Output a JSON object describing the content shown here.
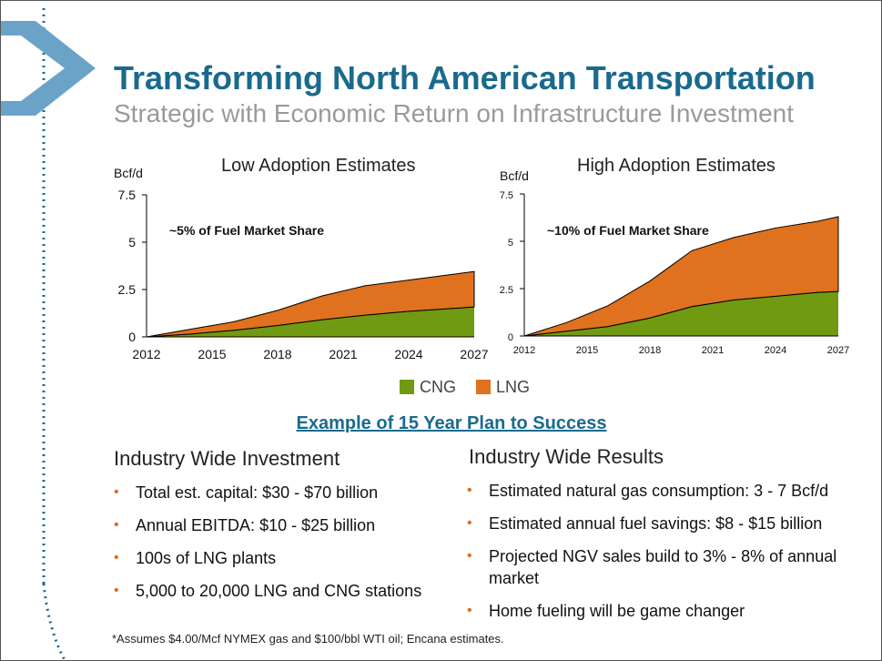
{
  "title": "Transforming North American Transportation",
  "subtitle": "Strategic with Economic Return on Infrastructure Investment",
  "colors": {
    "brand_blue": "#1a6a8e",
    "cng": "#6f9a12",
    "lng": "#e0711f",
    "bullet": "#e06a20"
  },
  "chart_data": [
    {
      "type": "area",
      "title": "Low Adoption Estimates",
      "ylabel": "Bcf/d",
      "annotation": "~5% of Fuel Market Share",
      "x": [
        2012,
        2014,
        2016,
        2018,
        2020,
        2022,
        2024,
        2026,
        2027
      ],
      "x_ticks": [
        "2012",
        "2015",
        "2018",
        "2021",
        "2024",
        "2027"
      ],
      "y_ticks": [
        "0",
        "2.5",
        "5",
        "7.5"
      ],
      "ylim": [
        0,
        7.5
      ],
      "stacked": true,
      "series": [
        {
          "name": "CNG",
          "values": [
            0,
            0.15,
            0.35,
            0.6,
            0.9,
            1.15,
            1.35,
            1.5,
            1.58
          ]
        },
        {
          "name": "LNG",
          "values": [
            0,
            0.25,
            0.45,
            0.8,
            1.25,
            1.55,
            1.65,
            1.8,
            1.87
          ]
        }
      ]
    },
    {
      "type": "area",
      "title": "High Adoption Estimates",
      "ylabel": "Bcf/d",
      "annotation": "~10% of Fuel Market Share",
      "x": [
        2012,
        2014,
        2016,
        2018,
        2019,
        2020,
        2022,
        2024,
        2026,
        2027
      ],
      "x_ticks": [
        "2012",
        "2015",
        "2018",
        "2021",
        "2024",
        "2027"
      ],
      "y_ticks": [
        "0",
        "2.5",
        "5",
        "7.5"
      ],
      "ylim": [
        0,
        7.5
      ],
      "stacked": true,
      "series": [
        {
          "name": "CNG",
          "values": [
            0,
            0.25,
            0.5,
            0.95,
            1.25,
            1.55,
            1.9,
            2.1,
            2.3,
            2.35
          ]
        },
        {
          "name": "LNG",
          "values": [
            0,
            0.45,
            1.1,
            1.95,
            2.45,
            2.95,
            3.3,
            3.6,
            3.75,
            3.95
          ]
        }
      ]
    }
  ],
  "legend": {
    "cng_label": "CNG",
    "lng_label": "LNG"
  },
  "plan_heading": "Example of 15 Year Plan to Success",
  "left_column": {
    "heading": "Industry Wide Investment",
    "bullets": [
      "Total est. capital: $30 - $70 billion",
      "Annual EBITDA: $10 - $25 billion",
      "100s of LNG plants",
      "5,000 to 20,000 LNG and CNG stations"
    ]
  },
  "right_column": {
    "heading": "Industry Wide Results",
    "bullets": [
      "Estimated natural gas consumption: 3 - 7 Bcf/d",
      "Estimated annual fuel savings: $8 - $15 billion",
      "Projected NGV sales build to 3% - 8% of annual market",
      "Home fueling will be game changer"
    ]
  },
  "footnote": "*Assumes $4.00/Mcf NYMEX gas and $100/bbl WTI oil; Encana estimates."
}
